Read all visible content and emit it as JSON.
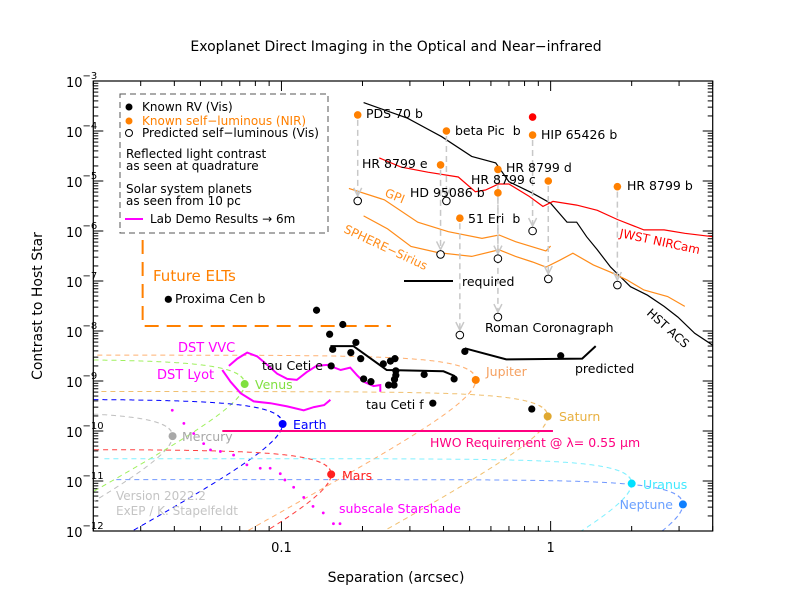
{
  "chart_data": {
    "type": "scatter",
    "title": "Exoplanet Direct Imaging in the Optical and Near−infrared",
    "xlabel": "Separation (arcsec)",
    "ylabel": "Contrast to Host Star",
    "xscale": "log",
    "yscale": "log",
    "xlim": [
      0.02,
      4
    ],
    "ylim": [
      1e-12,
      0.001
    ],
    "x_ticks": [
      {
        "value": 0.1,
        "label": "0.1"
      },
      {
        "value": 1,
        "label": "1"
      }
    ],
    "y_tick_exponents": [
      -3,
      -4,
      -5,
      -6,
      -7,
      -8,
      -9,
      -10,
      -11,
      -12
    ],
    "y_tick_base": "10",
    "legend": {
      "known_rv": "Known RV (Vis)",
      "known_self_luminous": "Known self−luminous (NIR)",
      "predicted_self_luminous": "Predicted self−luminous (Vis)",
      "reflected_1": "Reflected light contrast",
      "reflected_2": "as seen at quadrature",
      "solar_1": "Solar system planets",
      "solar_2": "as seen from 10 pc",
      "lab_demo": "Lab Demo Results → 6m"
    },
    "colors": {
      "rv": "#000000",
      "self_luminous": "#ff8000",
      "extra_point": "#ff0000",
      "arrow": "#c8c8c8",
      "lab_demo": "#ff00ff",
      "hwo": "#ff0080",
      "elt": "#ff8000"
    },
    "known_rv": {
      "points": [
        [
          0.135,
          2.6e-08
        ],
        [
          0.169,
          1.35e-08
        ],
        [
          0.151,
          8.6e-09
        ],
        [
          0.189,
          5.9e-09
        ],
        [
          0.155,
          4.3e-09
        ],
        [
          0.181,
          3.7e-09
        ],
        [
          0.197,
          2.8e-09
        ],
        [
          0.264,
          2.8e-09
        ],
        [
          0.254,
          2.5e-09
        ],
        [
          0.239,
          2.2e-09
        ],
        [
          0.266,
          1.6e-09
        ],
        [
          0.266,
          1.3e-09
        ],
        [
          0.263,
          1.08e-09
        ],
        [
          0.202,
          1.1e-09
        ],
        [
          0.215,
          9.7e-10
        ],
        [
          0.25,
          8.3e-10
        ],
        [
          0.262,
          8.3e-10
        ],
        [
          0.339,
          1.35e-09
        ],
        [
          0.438,
          1.1e-09
        ],
        [
          0.48,
          3.9e-09
        ],
        [
          1.09,
          3.2e-09
        ],
        [
          0.851,
          2.75e-10
        ]
      ],
      "named": [
        {
          "name": "Proxima Cen b",
          "sep": 0.038,
          "contrast": 4.3e-08
        },
        {
          "name": "tau Ceti e",
          "sep": 0.153,
          "contrast": 2e-09
        },
        {
          "name": "tau Ceti f",
          "sep": 0.365,
          "contrast": 3.6e-10
        }
      ]
    },
    "self_luminous": [
      {
        "name": "PDS 70 b",
        "sep": 0.192,
        "nir": 0.00021,
        "vis": 4e-06
      },
      {
        "name": "beta Pic  b",
        "sep": 0.41,
        "nir": 0.0001,
        "vis": 4e-06
      },
      {
        "name": "HIP 65426 b",
        "sep": 0.857,
        "nir": 8.3e-05,
        "vis": 1e-06
      },
      {
        "name": "HR 8799 e",
        "sep": 0.39,
        "nir": 2.1e-05,
        "vis": 3.4e-07
      },
      {
        "name": "HR 8799 d",
        "sep": 0.637,
        "nir": 1.7e-05,
        "vis": 2.8e-07
      },
      {
        "name": "HR 8799 c",
        "sep": 0.98,
        "nir": 1e-05,
        "vis": 1.1e-07
      },
      {
        "name": "HD 95086 b",
        "sep": 0.637,
        "nir": 5.8e-06,
        "vis": 1.9e-08
      },
      {
        "name": "HR 8799 b",
        "sep": 1.77,
        "nir": 7.7e-06,
        "vis": 8.3e-08
      },
      {
        "name": "51 Eri  b",
        "sep": 0.46,
        "nir": 1.8e-06,
        "vis": 8.3e-09
      }
    ],
    "extra_point": {
      "sep": 0.857,
      "contrast": 0.00019
    },
    "curves": [
      {
        "name": "HST ACS",
        "color": "#000000",
        "points": [
          [
            0.202,
            0.00037
          ],
          [
            0.294,
            0.00018
          ],
          [
            0.394,
            7.7e-05
          ],
          [
            0.509,
            3.1e-05
          ],
          [
            0.625,
            2.3e-05
          ],
          [
            0.7,
            9.7e-06
          ],
          [
            0.857,
            5.7e-06
          ],
          [
            1.0,
            3.6e-06
          ],
          [
            1.15,
            1.5e-06
          ],
          [
            1.25,
            1.5e-06
          ],
          [
            1.36,
            7.7e-07
          ],
          [
            1.49,
            4.2e-07
          ],
          [
            1.67,
            1.9e-07
          ],
          [
            1.82,
            1.2e-07
          ],
          [
            1.98,
            7.7e-08
          ],
          [
            2.29,
            5.2e-08
          ],
          [
            2.64,
            3.1e-08
          ],
          [
            2.97,
            1.9e-08
          ],
          [
            3.43,
            9e-09
          ],
          [
            4.0,
            5.2e-09
          ]
        ]
      },
      {
        "name": "JWST NIRCam",
        "color": "#ff0000",
        "points": [
          [
            0.231,
            2.9e-05
          ],
          [
            0.278,
            1.9e-05
          ],
          [
            0.35,
            1.5e-05
          ],
          [
            0.454,
            1.2e-05
          ],
          [
            0.525,
            6.1e-06
          ],
          [
            0.573,
            6.6e-06
          ],
          [
            0.641,
            8.7e-06
          ],
          [
            0.7,
            8.7e-06
          ],
          [
            0.834,
            4.9e-06
          ],
          [
            0.936,
            3.1e-06
          ],
          [
            1.02,
            3.9e-06
          ],
          [
            1.25,
            3.3e-06
          ],
          [
            1.49,
            2.6e-06
          ],
          [
            1.77,
            1.7e-06
          ],
          [
            2.22,
            1.05e-06
          ],
          [
            2.64,
            1.05e-06
          ],
          [
            3.15,
            9e-07
          ],
          [
            4.0,
            7.7e-07
          ]
        ]
      },
      {
        "name": "GPI",
        "color": "#ff8c1a",
        "points": [
          [
            0.178,
            7.1e-06
          ],
          [
            0.241,
            4.2e-06
          ],
          [
            0.321,
            1.5e-06
          ],
          [
            0.417,
            9.7e-07
          ],
          [
            0.556,
            7.1e-07
          ],
          [
            0.643,
            8.3e-07
          ],
          [
            0.741,
            6.1e-07
          ],
          [
            0.96,
            4e-07
          ],
          [
            1.0,
            5e-07
          ]
        ]
      },
      {
        "name": "SPHERE−Sirius",
        "color": "#ff8c1a",
        "points": [
          [
            0.202,
            2e-06
          ],
          [
            0.248,
            1.1e-06
          ],
          [
            0.303,
            4.9e-07
          ],
          [
            0.382,
            3.7e-07
          ],
          [
            0.509,
            3.1e-07
          ],
          [
            0.643,
            4.2e-07
          ],
          [
            0.741,
            3.1e-07
          ],
          [
            0.857,
            2.4e-07
          ],
          [
            0.96,
            1.9e-07
          ],
          [
            1.08,
            2.6e-07
          ],
          [
            1.21,
            3.6e-07
          ],
          [
            1.44,
            2.1e-07
          ],
          [
            1.67,
            1.5e-07
          ],
          [
            1.92,
            1.05e-07
          ],
          [
            2.22,
            6.6e-08
          ],
          [
            2.72,
            4.9e-08
          ],
          [
            3.15,
            3.1e-08
          ]
        ]
      },
      {
        "name": "Roman predicted (inner)",
        "color": "#000000",
        "width": 2,
        "points": [
          [
            0.152,
            5e-09
          ],
          [
            0.185,
            5e-09
          ],
          [
            0.246,
            1.66e-09
          ],
          [
            0.4,
            1.56e-09
          ],
          [
            0.44,
            1.26e-09
          ]
        ]
      },
      {
        "name": "Roman predicted (outer)",
        "color": "#000000",
        "width": 2,
        "points": [
          [
            0.48,
            4.5e-09
          ],
          [
            0.684,
            2.7e-09
          ],
          [
            1.31,
            2.8e-09
          ],
          [
            1.47,
            5e-09
          ]
        ]
      },
      {
        "name": "DST VVC",
        "color": "#ff00ff",
        "width": 2,
        "points": [
          [
            0.0638,
            2e-09
          ],
          [
            0.0686,
            2.8e-09
          ],
          [
            0.0746,
            3.7e-09
          ],
          [
            0.0813,
            3.1e-09
          ],
          [
            0.0885,
            2.1e-09
          ],
          [
            0.0964,
            1.4e-09
          ],
          [
            0.105,
            1.1e-09
          ],
          [
            0.114,
            1.05e-09
          ],
          [
            0.124,
            1.5e-09
          ],
          [
            0.135,
            2e-09
          ],
          [
            0.148,
            2.1e-09
          ],
          [
            0.166,
            1.66e-09
          ],
          [
            0.18,
            1.85e-09
          ],
          [
            0.191,
            1.3e-09
          ],
          [
            0.202,
            9.7e-10
          ],
          [
            0.22,
            7.9e-10
          ],
          [
            0.233,
            8.3e-10
          ],
          [
            0.233,
            6.1e-10
          ]
        ]
      },
      {
        "name": "DST Lyot",
        "color": "#ff00ff",
        "width": 2,
        "points": [
          [
            0.0603,
            1.66e-09
          ],
          [
            0.0647,
            9.7e-10
          ],
          [
            0.0705,
            5.7e-10
          ],
          [
            0.0789,
            3.9e-10
          ],
          [
            0.091,
            3.6e-10
          ],
          [
            0.105,
            3.1e-10
          ],
          [
            0.121,
            2.6e-10
          ],
          [
            0.132,
            3e-10
          ],
          [
            0.144,
            3.3e-10
          ],
          [
            0.152,
            4.2e-10
          ]
        ]
      },
      {
        "name": "subscale Starshade",
        "color": "#ff00ff",
        "dotted": true,
        "points": [
          [
            0.0393,
            2.6e-10
          ],
          [
            0.0434,
            1.42e-10
          ],
          [
            0.0472,
            8.9e-11
          ],
          [
            0.0514,
            5.6e-11
          ],
          [
            0.0545,
            4.2e-11
          ],
          [
            0.0593,
            3.9e-11
          ],
          [
            0.0664,
            3.3e-11
          ],
          [
            0.0744,
            2.1e-11
          ],
          [
            0.0834,
            1.8e-11
          ],
          [
            0.0908,
            1.8e-11
          ],
          [
            0.099,
            1.4e-11
          ],
          [
            0.103,
            1.05e-11
          ],
          [
            0.111,
            7.5e-12
          ],
          [
            0.121,
            4.7e-12
          ],
          [
            0.131,
            3.1e-12
          ],
          [
            0.143,
            2.3e-12
          ],
          [
            0.156,
            1.4e-12
          ],
          [
            0.165,
            1.4e-12
          ]
        ]
      }
    ],
    "hwo_requirement": {
      "label": "HWO Requirement @ λ= 0.55 μm",
      "sep_range": [
        0.0603,
        1.02
      ],
      "contrast": 1e-10
    },
    "future_elts": {
      "label": "Future ELTs",
      "inner_sep": 0.0305,
      "outer_sep": 0.255,
      "contrast_top": 6.6e-07,
      "contrast_floor": 1.26e-08
    },
    "planets": [
      {
        "name": "Mercury",
        "sep": 0.0394,
        "contrast": 7.9e-11,
        "color": "#a8a8a8",
        "orbit_color": "#c0c0c0"
      },
      {
        "name": "Venus",
        "sep": 0.073,
        "contrast": 8.7e-10,
        "color": "#80e040",
        "orbit_color": "#a0f060"
      },
      {
        "name": "Earth",
        "sep": 0.101,
        "contrast": 1.38e-10,
        "color": "#0000ff",
        "orbit_color": "#0000ff"
      },
      {
        "name": "Mars",
        "sep": 0.153,
        "contrast": 1.36e-11,
        "color": "#ff2020",
        "orbit_color": "#ff4040"
      },
      {
        "name": "Jupiter",
        "sep": 0.527,
        "contrast": 1.05e-09,
        "color": "#ff8000",
        "orbit_color": "#ffb070"
      },
      {
        "name": "Saturn",
        "sep": 0.975,
        "contrast": 1.96e-10,
        "color": "#e0a830",
        "orbit_color": "#f0c070"
      },
      {
        "name": "Uranus",
        "sep": 2.0,
        "contrast": 8.9e-12,
        "color": "#00e0ff",
        "orbit_color": "#80f0ff"
      },
      {
        "name": "Neptune",
        "sep": 3.1,
        "contrast": 3.4e-12,
        "color": "#1080ff",
        "orbit_color": "#7098ff"
      }
    ],
    "annotations": {
      "required": "required",
      "roman_coronagraph": "Roman Coronagraph",
      "predicted": "predicted",
      "version": "Version 2022.2",
      "credit": "ExEP / K. Stapelfeldt"
    }
  }
}
